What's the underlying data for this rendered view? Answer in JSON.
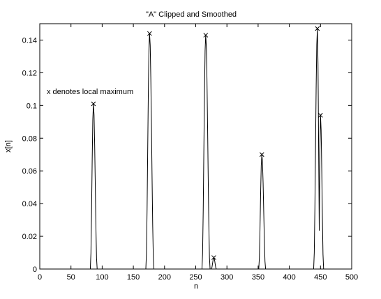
{
  "chart_data": {
    "type": "line",
    "title": "\"A\" Clipped and Smoothed",
    "xlabel": "n",
    "ylabel": "x[n]",
    "xlim": [
      0,
      500
    ],
    "ylim": [
      0,
      0.15
    ],
    "xticks": [
      0,
      50,
      100,
      150,
      200,
      250,
      300,
      350,
      400,
      450,
      500
    ],
    "yticks": [
      0,
      0.02,
      0.04,
      0.06,
      0.08,
      0.1,
      0.12,
      0.14
    ],
    "ytick_labels": [
      "0",
      "0.02",
      "0.04",
      "0.06",
      "0.08",
      "0.1",
      "0.12",
      "0.14"
    ],
    "grid": false,
    "legend": "none",
    "annotations": [
      {
        "text": "x denotes local maximum",
        "x": 20,
        "y": 0.108
      }
    ],
    "peaks": [
      {
        "n": 86,
        "value": 0.101,
        "start": 81,
        "end": 92
      },
      {
        "n": 176,
        "value": 0.144,
        "start": 170,
        "end": 183
      },
      {
        "n": 266,
        "value": 0.143,
        "start": 260,
        "end": 273
      },
      {
        "n": 279,
        "value": 0.007,
        "start": 275,
        "end": 283
      },
      {
        "n": 356,
        "value": 0.07,
        "start": 351,
        "end": 362
      },
      {
        "n": 445,
        "value": 0.147,
        "start": 439,
        "end": 449
      },
      {
        "n": 450,
        "value": 0.094,
        "start": 447,
        "end": 455
      }
    ],
    "series": [
      {
        "values": []
      }
    ],
    "line_color": "#000000",
    "marker": "x"
  }
}
